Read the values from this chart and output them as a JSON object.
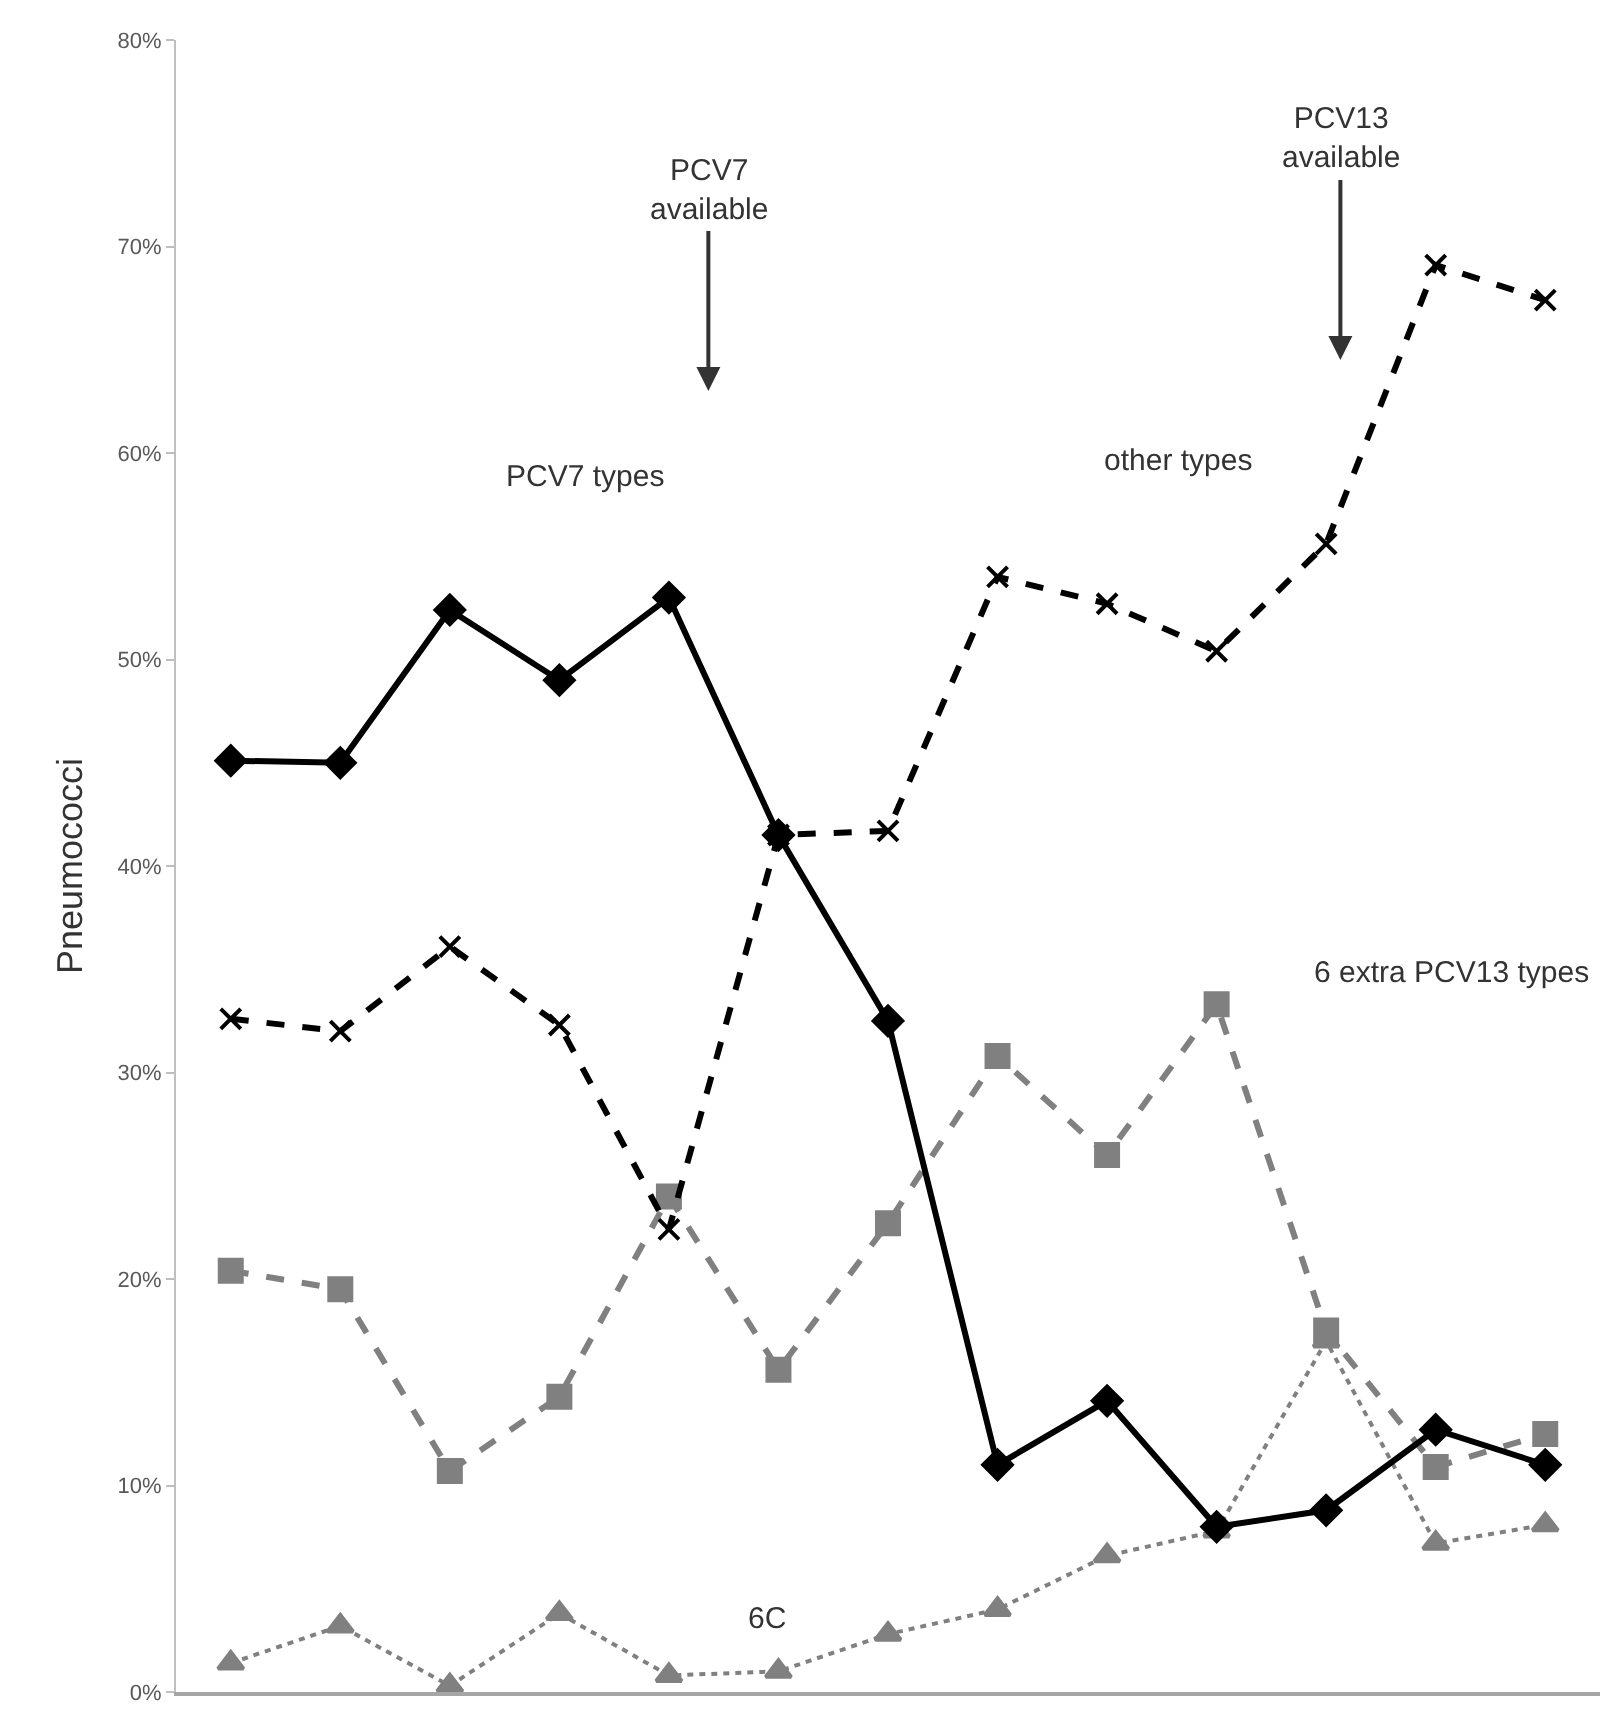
{
  "chart_data": {
    "type": "line",
    "ylabel": "Pneumococci",
    "categories": [
      null,
      null,
      null,
      null,
      null,
      null,
      null,
      null,
      null,
      null,
      null,
      null,
      null
    ],
    "ylim": [
      0,
      80
    ],
    "yticks": [
      {
        "value": 0,
        "label": "0%"
      },
      {
        "value": 10,
        "label": "10%"
      },
      {
        "value": 20,
        "label": "20%"
      },
      {
        "value": 30,
        "label": "30%"
      },
      {
        "value": 40,
        "label": "40%"
      },
      {
        "value": 50,
        "label": "50%"
      },
      {
        "value": 60,
        "label": "60%"
      },
      {
        "value": 70,
        "label": "70%"
      },
      {
        "value": 80,
        "label": "80%"
      }
    ],
    "legend": false,
    "series": [
      {
        "name": "PCV7 types",
        "color": "#000000",
        "marker": "diamond",
        "line_style": "solid",
        "values": [
          45.1,
          45,
          52.4,
          49,
          53,
          41.5,
          32.5,
          11,
          14.1,
          8,
          8.8,
          12.7,
          11
        ]
      },
      {
        "name": "other types",
        "color": "#000000",
        "marker": "cross",
        "line_style": "dashed",
        "values": [
          32.6,
          32,
          36.1,
          32.3,
          22.4,
          41.5,
          41.7,
          54,
          52.7,
          50.4,
          55.6,
          69.1,
          67.4
        ]
      },
      {
        "name": "6 extra PCV13 types",
        "color": "#808080",
        "marker": "square",
        "line_style": "dashed",
        "values": [
          20.4,
          19.5,
          10.7,
          14.3,
          24,
          15.6,
          22.7,
          30.8,
          26,
          33.3,
          17.5,
          10.9,
          12.5
        ]
      },
      {
        "name": "6C",
        "color": "#808080",
        "marker": "triangle",
        "line_style": "dotted",
        "values": [
          1.4,
          3.2,
          0.3,
          3.8,
          0.8,
          1,
          2.8,
          4,
          6.6,
          7.8,
          17,
          7.2,
          8.1
        ]
      }
    ],
    "annotations": [
      "PCV7\navailable",
      "PCV13\navailable"
    ]
  }
}
